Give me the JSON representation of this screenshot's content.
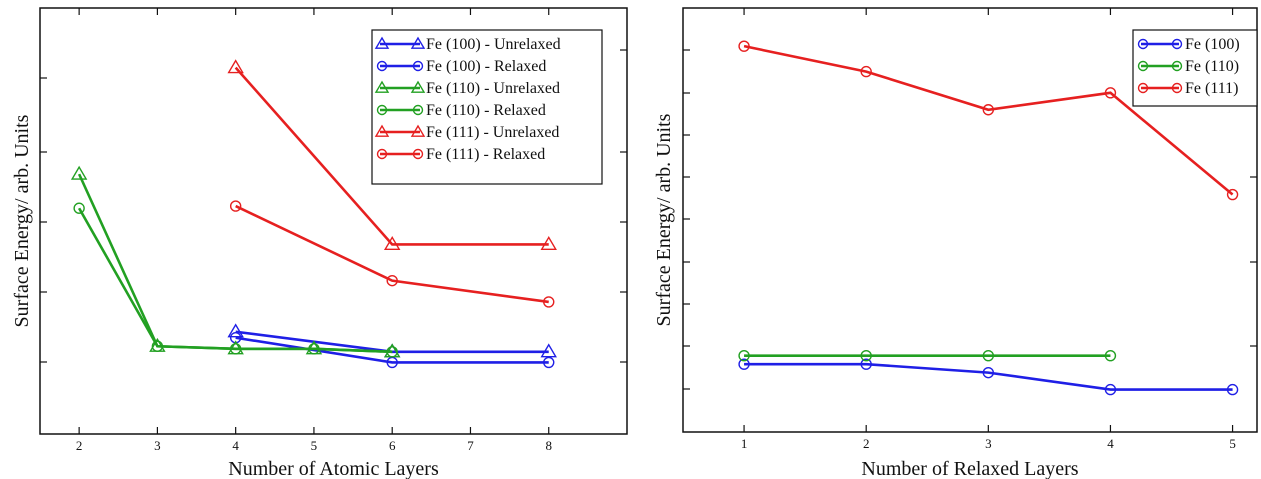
{
  "chart_data": [
    {
      "type": "line",
      "title": "",
      "xlabel": "Number of Atomic Layers",
      "ylabel": "Surface Energy/ arb. Units",
      "x_ticks": [
        2,
        3,
        4,
        5,
        6,
        7,
        8
      ],
      "xlim": [
        1.5,
        9.0
      ],
      "ylim": [
        0,
        10
      ],
      "grid": false,
      "legend_position": "top-right",
      "series": [
        {
          "name": "Fe (100) - Unrelaxed",
          "color": "#1f1fe6",
          "marker": "triangle",
          "x": [
            4,
            6,
            8
          ],
          "y": [
            2.4,
            1.93,
            1.93
          ]
        },
        {
          "name": "Fe (100) - Relaxed",
          "color": "#1f1fe6",
          "marker": "circle",
          "x": [
            4,
            6,
            8
          ],
          "y": [
            2.26,
            1.68,
            1.68
          ]
        },
        {
          "name": "Fe (110)  - Unrelaxed",
          "color": "#22a022",
          "marker": "triangle",
          "x": [
            2,
            3,
            4,
            5,
            6
          ],
          "y": [
            6.1,
            2.06,
            2.0,
            2.0,
            1.93
          ]
        },
        {
          "name": "Fe (110) - Relaxed",
          "color": "#22a022",
          "marker": "circle",
          "x": [
            2,
            3,
            4,
            5,
            6
          ],
          "y": [
            5.3,
            2.06,
            2.0,
            2.0,
            1.93
          ]
        },
        {
          "name": "Fe (111) - Unrelaxed",
          "color": "#e62020",
          "marker": "triangle",
          "x": [
            4,
            6,
            8
          ],
          "y": [
            8.6,
            4.45,
            4.45
          ]
        },
        {
          "name": "Fe (111) - Relaxed",
          "color": "#e62020",
          "marker": "circle",
          "x": [
            4,
            6,
            8
          ],
          "y": [
            5.35,
            3.6,
            3.1
          ]
        }
      ]
    },
    {
      "type": "line",
      "title": "",
      "xlabel": "Number of Relaxed Layers",
      "ylabel": "Surface Energy/ arb. Units",
      "x_ticks": [
        1,
        2,
        3,
        4,
        5
      ],
      "xlim": [
        0.5,
        5.2
      ],
      "ylim": [
        0,
        10
      ],
      "grid": false,
      "legend_position": "top-right",
      "series": [
        {
          "name": "Fe (100)",
          "color": "#1f1fe6",
          "marker": "circle",
          "x": [
            1,
            2,
            3,
            4,
            5
          ],
          "y": [
            1.6,
            1.6,
            1.4,
            1.0,
            1.0
          ]
        },
        {
          "name": "Fe (110)",
          "color": "#22a022",
          "marker": "circle",
          "x": [
            1,
            2,
            3,
            4
          ],
          "y": [
            1.8,
            1.8,
            1.8,
            1.8
          ]
        },
        {
          "name": "Fe (111)",
          "color": "#e62020",
          "marker": "circle",
          "x": [
            1,
            2,
            3,
            4,
            5
          ],
          "y": [
            9.1,
            8.5,
            7.6,
            8.0,
            5.6
          ]
        }
      ]
    }
  ]
}
